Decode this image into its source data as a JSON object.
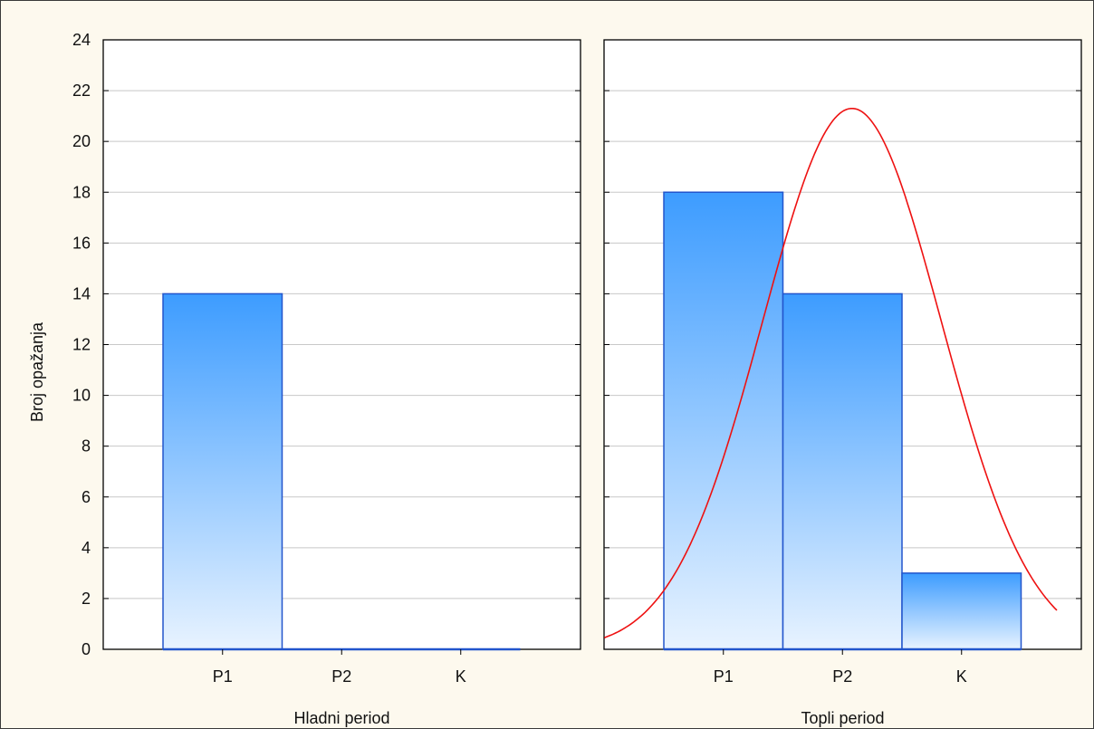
{
  "chart_data": {
    "type": "bar",
    "ylabel": "Broj opažanja",
    "ylim": [
      0,
      24
    ],
    "yticks": [
      0,
      2,
      4,
      6,
      8,
      10,
      12,
      14,
      16,
      18,
      20,
      22,
      24
    ],
    "grid": true,
    "categories": [
      "P1",
      "P2",
      "K"
    ],
    "bar_color_top": "#3d9cff",
    "bar_color_bottom": "#e8f3ff",
    "bar_edge_color": "#2255cc",
    "panels": [
      {
        "xlabel": "Hladni period",
        "values": [
          14,
          0,
          0
        ],
        "curve": null
      },
      {
        "xlabel": "Topli period",
        "values": [
          18,
          14,
          3
        ],
        "curve": {
          "color": "#ee1111",
          "mean": 1.58,
          "sd": 0.75,
          "peak": 21.3,
          "x_range": [
            -0.5,
            3.3
          ]
        }
      }
    ]
  }
}
